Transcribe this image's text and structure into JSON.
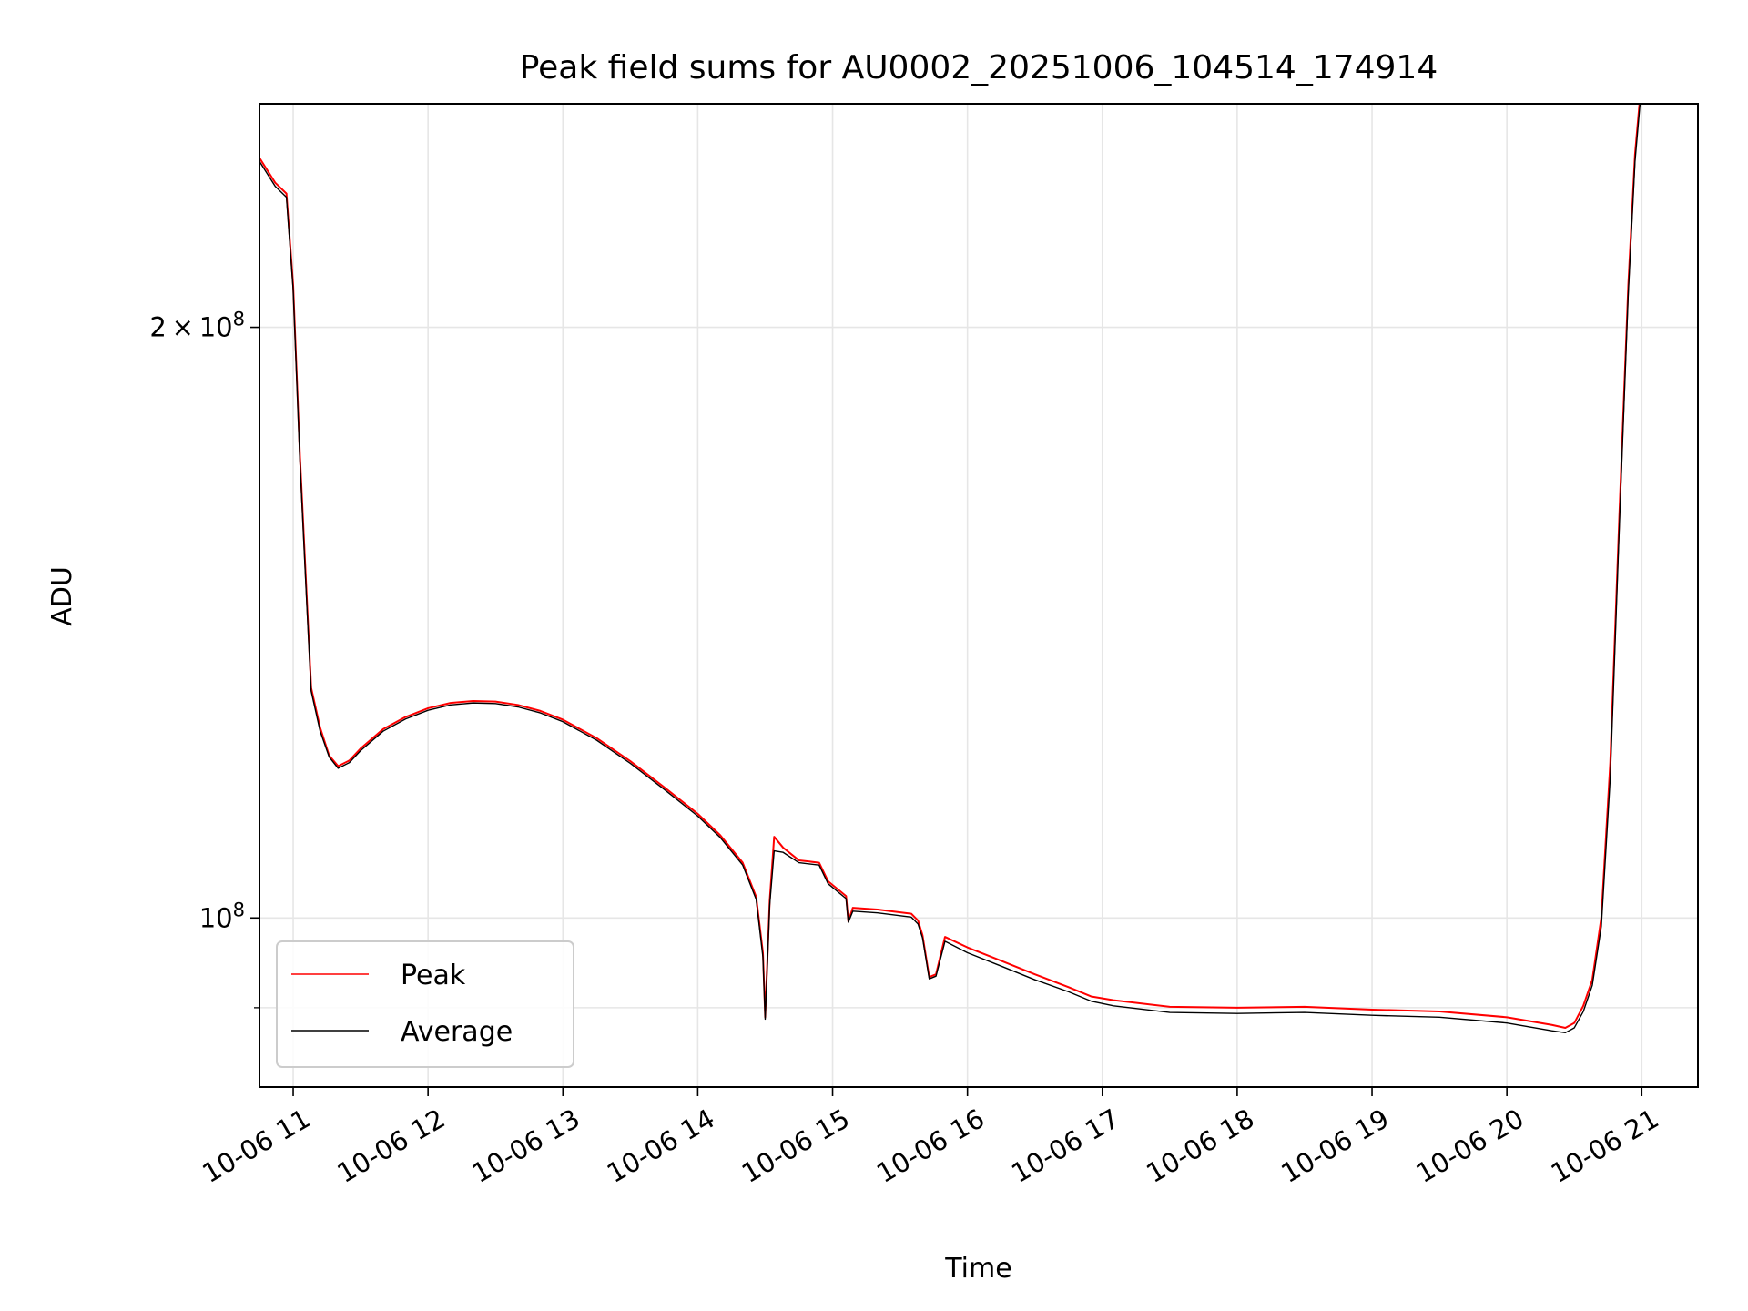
{
  "chart_data": {
    "type": "line",
    "title": "Peak field sums for AU0002_20251006_104514_174914",
    "xlabel": "Time",
    "ylabel": "ADU",
    "yscale": "log",
    "grid": true,
    "legend_position": "lower-left",
    "xlim": [
      "2025-10-06 10:45",
      "2025-10-06 21:25"
    ],
    "ylim": [
      82000000,
      260000000
    ],
    "x_ticks": [
      {
        "time": "2025-10-06 11:00",
        "label": "10-06 11"
      },
      {
        "time": "2025-10-06 12:00",
        "label": "10-06 12"
      },
      {
        "time": "2025-10-06 13:00",
        "label": "10-06 13"
      },
      {
        "time": "2025-10-06 14:00",
        "label": "10-06 14"
      },
      {
        "time": "2025-10-06 15:00",
        "label": "10-06 15"
      },
      {
        "time": "2025-10-06 16:00",
        "label": "10-06 16"
      },
      {
        "time": "2025-10-06 17:00",
        "label": "10-06 17"
      },
      {
        "time": "2025-10-06 18:00",
        "label": "10-06 18"
      },
      {
        "time": "2025-10-06 19:00",
        "label": "10-06 19"
      },
      {
        "time": "2025-10-06 20:00",
        "label": "10-06 20"
      },
      {
        "time": "2025-10-06 21:00",
        "label": "10-06 21"
      }
    ],
    "y_ticks": [
      {
        "value": 200000000,
        "mantissa": "2",
        "times": "×",
        "base": "10",
        "exponent": "8"
      },
      {
        "value": 100000000,
        "mantissa": "",
        "times": "",
        "base": "10",
        "exponent": "8"
      }
    ],
    "y_minor_ticks": [
      90000000
    ],
    "series": [
      {
        "name": "Peak",
        "color": "#ff0000",
        "points": [
          [
            "2025-10-06 10:45",
            244000000
          ],
          [
            "2025-10-06 10:52",
            237000000
          ],
          [
            "2025-10-06 10:57",
            234000000
          ],
          [
            "2025-10-06 11:00",
            210000000
          ],
          [
            "2025-10-06 11:03",
            172000000
          ],
          [
            "2025-10-06 11:06",
            146000000
          ],
          [
            "2025-10-06 11:08",
            131000000
          ],
          [
            "2025-10-06 11:12",
            125000000
          ],
          [
            "2025-10-06 11:16",
            121000000
          ],
          [
            "2025-10-06 11:20",
            119500000
          ],
          [
            "2025-10-06 11:25",
            120300000
          ],
          [
            "2025-10-06 11:30",
            122000000
          ],
          [
            "2025-10-06 11:40",
            124800000
          ],
          [
            "2025-10-06 11:50",
            126600000
          ],
          [
            "2025-10-06 12:00",
            127900000
          ],
          [
            "2025-10-06 12:10",
            128700000
          ],
          [
            "2025-10-06 12:20",
            129000000
          ],
          [
            "2025-10-06 12:30",
            128900000
          ],
          [
            "2025-10-06 12:40",
            128400000
          ],
          [
            "2025-10-06 12:50",
            127500000
          ],
          [
            "2025-10-06 13:00",
            126200000
          ],
          [
            "2025-10-06 13:15",
            123500000
          ],
          [
            "2025-10-06 13:30",
            120200000
          ],
          [
            "2025-10-06 13:45",
            116600000
          ],
          [
            "2025-10-06 14:00",
            113000000
          ],
          [
            "2025-10-06 14:10",
            110200000
          ],
          [
            "2025-10-06 14:20",
            106700000
          ],
          [
            "2025-10-06 14:26",
            102500000
          ],
          [
            "2025-10-06 14:29",
            96000000
          ],
          [
            "2025-10-06 14:30",
            89000000
          ],
          [
            "2025-10-06 14:32",
            102000000
          ],
          [
            "2025-10-06 14:34",
            110000000
          ],
          [
            "2025-10-06 14:38",
            108600000
          ],
          [
            "2025-10-06 14:45",
            107000000
          ],
          [
            "2025-10-06 14:54",
            106700000
          ],
          [
            "2025-10-06 14:58",
            104400000
          ],
          [
            "2025-10-06 15:06",
            102600000
          ],
          [
            "2025-10-06 15:07",
            99600000
          ],
          [
            "2025-10-06 15:09",
            101200000
          ],
          [
            "2025-10-06 15:20",
            101000000
          ],
          [
            "2025-10-06 15:35",
            100500000
          ],
          [
            "2025-10-06 15:38",
            99700000
          ],
          [
            "2025-10-06 15:40",
            98000000
          ],
          [
            "2025-10-06 15:43",
            93300000
          ],
          [
            "2025-10-06 15:46",
            93600000
          ],
          [
            "2025-10-06 15:50",
            97800000
          ],
          [
            "2025-10-06 16:00",
            96600000
          ],
          [
            "2025-10-06 16:15",
            95100000
          ],
          [
            "2025-10-06 16:30",
            93600000
          ],
          [
            "2025-10-06 16:45",
            92200000
          ],
          [
            "2025-10-06 16:55",
            91200000
          ],
          [
            "2025-10-06 17:05",
            90800000
          ],
          [
            "2025-10-06 17:30",
            90100000
          ],
          [
            "2025-10-06 18:00",
            90000000
          ],
          [
            "2025-10-06 18:30",
            90100000
          ],
          [
            "2025-10-06 19:00",
            89800000
          ],
          [
            "2025-10-06 19:30",
            89600000
          ],
          [
            "2025-10-06 20:00",
            89000000
          ],
          [
            "2025-10-06 20:20",
            88200000
          ],
          [
            "2025-10-06 20:26",
            87900000
          ],
          [
            "2025-10-06 20:30",
            88400000
          ],
          [
            "2025-10-06 20:34",
            90200000
          ],
          [
            "2025-10-06 20:38",
            93000000
          ],
          [
            "2025-10-06 20:42",
            100000000
          ],
          [
            "2025-10-06 20:46",
            120000000
          ],
          [
            "2025-10-06 20:50",
            160000000
          ],
          [
            "2025-10-06 20:54",
            210000000
          ],
          [
            "2025-10-06 20:57",
            245000000
          ],
          [
            "2025-10-06 21:00",
            268000000
          ]
        ]
      },
      {
        "name": "Average",
        "color": "#000000",
        "points": [
          [
            "2025-10-06 10:45",
            243000000
          ],
          [
            "2025-10-06 10:52",
            236000000
          ],
          [
            "2025-10-06 10:57",
            233000000
          ],
          [
            "2025-10-06 11:00",
            209000000
          ],
          [
            "2025-10-06 11:03",
            171000000
          ],
          [
            "2025-10-06 11:06",
            145000000
          ],
          [
            "2025-10-06 11:08",
            130500000
          ],
          [
            "2025-10-06 11:12",
            124500000
          ],
          [
            "2025-10-06 11:16",
            120800000
          ],
          [
            "2025-10-06 11:20",
            119200000
          ],
          [
            "2025-10-06 11:25",
            120000000
          ],
          [
            "2025-10-06 11:30",
            121700000
          ],
          [
            "2025-10-06 11:40",
            124500000
          ],
          [
            "2025-10-06 11:50",
            126300000
          ],
          [
            "2025-10-06 12:00",
            127600000
          ],
          [
            "2025-10-06 12:10",
            128400000
          ],
          [
            "2025-10-06 12:20",
            128700000
          ],
          [
            "2025-10-06 12:30",
            128600000
          ],
          [
            "2025-10-06 12:40",
            128100000
          ],
          [
            "2025-10-06 12:50",
            127200000
          ],
          [
            "2025-10-06 13:00",
            125900000
          ],
          [
            "2025-10-06 13:15",
            123200000
          ],
          [
            "2025-10-06 13:30",
            119900000
          ],
          [
            "2025-10-06 13:45",
            116300000
          ],
          [
            "2025-10-06 14:00",
            112700000
          ],
          [
            "2025-10-06 14:10",
            109900000
          ],
          [
            "2025-10-06 14:20",
            106400000
          ],
          [
            "2025-10-06 14:26",
            102200000
          ],
          [
            "2025-10-06 14:29",
            95500000
          ],
          [
            "2025-10-06 14:30",
            88800000
          ],
          [
            "2025-10-06 14:32",
            101500000
          ],
          [
            "2025-10-06 14:34",
            108200000
          ],
          [
            "2025-10-06 14:38",
            108000000
          ],
          [
            "2025-10-06 14:45",
            106700000
          ],
          [
            "2025-10-06 14:54",
            106400000
          ],
          [
            "2025-10-06 14:58",
            104100000
          ],
          [
            "2025-10-06 15:06",
            102300000
          ],
          [
            "2025-10-06 15:07",
            99500000
          ],
          [
            "2025-10-06 15:09",
            100800000
          ],
          [
            "2025-10-06 15:20",
            100600000
          ],
          [
            "2025-10-06 15:35",
            100100000
          ],
          [
            "2025-10-06 15:38",
            99300000
          ],
          [
            "2025-10-06 15:40",
            97700000
          ],
          [
            "2025-10-06 15:43",
            93100000
          ],
          [
            "2025-10-06 15:46",
            93400000
          ],
          [
            "2025-10-06 15:50",
            97300000
          ],
          [
            "2025-10-06 16:00",
            96000000
          ],
          [
            "2025-10-06 16:15",
            94500000
          ],
          [
            "2025-10-06 16:30",
            93000000
          ],
          [
            "2025-10-06 16:45",
            91700000
          ],
          [
            "2025-10-06 16:55",
            90700000
          ],
          [
            "2025-10-06 17:05",
            90200000
          ],
          [
            "2025-10-06 17:30",
            89500000
          ],
          [
            "2025-10-06 18:00",
            89400000
          ],
          [
            "2025-10-06 18:30",
            89500000
          ],
          [
            "2025-10-06 19:00",
            89200000
          ],
          [
            "2025-10-06 19:30",
            89000000
          ],
          [
            "2025-10-06 20:00",
            88400000
          ],
          [
            "2025-10-06 20:20",
            87600000
          ],
          [
            "2025-10-06 20:26",
            87400000
          ],
          [
            "2025-10-06 20:30",
            87900000
          ],
          [
            "2025-10-06 20:34",
            89600000
          ],
          [
            "2025-10-06 20:38",
            92400000
          ],
          [
            "2025-10-06 20:42",
            99000000
          ],
          [
            "2025-10-06 20:46",
            118000000
          ],
          [
            "2025-10-06 20:50",
            158000000
          ],
          [
            "2025-10-06 20:54",
            208000000
          ],
          [
            "2025-10-06 20:57",
            243000000
          ],
          [
            "2025-10-06 21:00",
            266000000
          ]
        ]
      }
    ]
  }
}
